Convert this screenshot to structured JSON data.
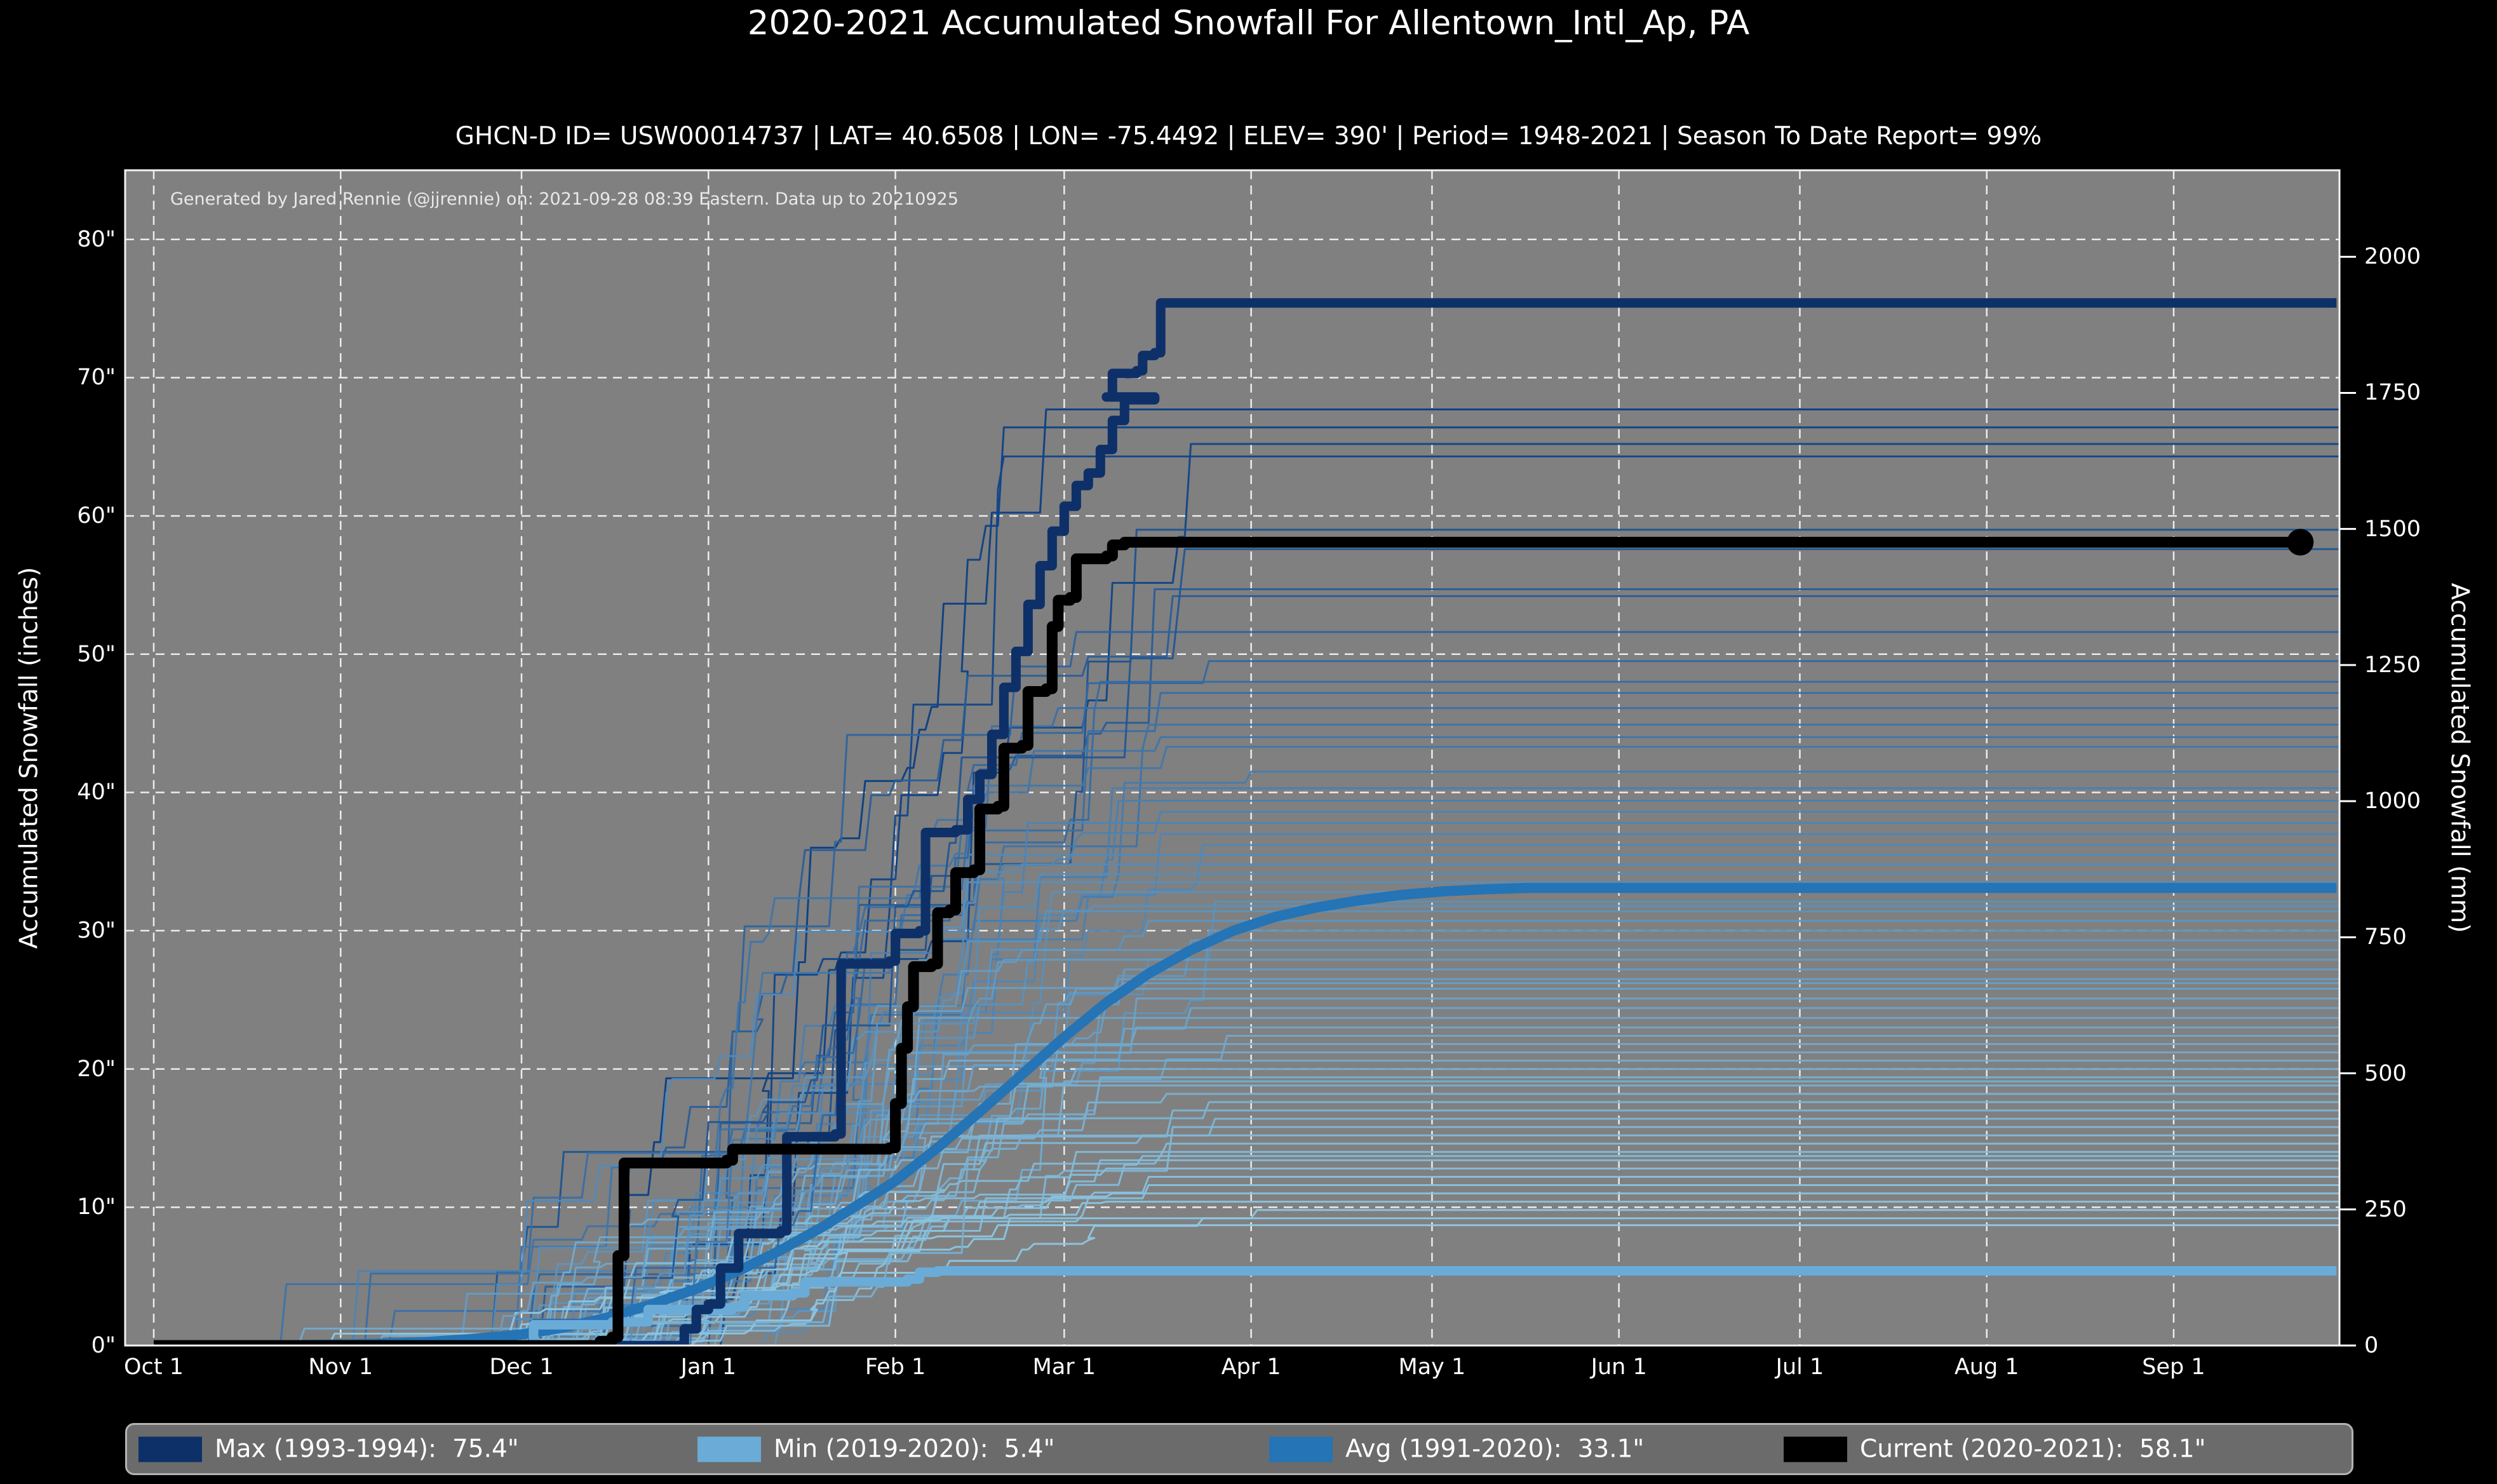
{
  "title": "2020-2021 Accumulated Snowfall For Allentown_Intl_Ap, PA",
  "subtitle": "GHCN-D ID= USW00014737 | LAT= 40.6508 | LON= -75.4492 | ELEV= 390' | Period= 1948-2021 | Season To Date Report= 99%",
  "watermark": "Generated by Jared Rennie (@jjrennie) on: 2021-09-28 08:39 Eastern. Data up to 20210925",
  "axes": {
    "left_label": "Accumulated Snowfall (inches)",
    "right_label": "Accumulated Snowfall (mm)",
    "x_tick_labels": [
      "Oct 1",
      "Nov 1",
      "Dec 1",
      "Jan 1",
      "Feb 1",
      "Mar 1",
      "Apr 1",
      "May 1",
      "Jun 1",
      "Jul 1",
      "Aug 1",
      "Sep 1"
    ],
    "x_tick_days": [
      0,
      31,
      61,
      92,
      123,
      151,
      182,
      212,
      243,
      273,
      304,
      335
    ],
    "y_tick_labels": [
      "0\"",
      "10\"",
      "20\"",
      "30\"",
      "40\"",
      "50\"",
      "60\"",
      "70\"",
      "80\""
    ],
    "y_tick_inches": [
      0,
      10,
      20,
      30,
      40,
      50,
      60,
      70,
      80
    ],
    "right_tick_labels": [
      "0",
      "250",
      "500",
      "750",
      "1000",
      "1250",
      "1500",
      "1750",
      "2000"
    ],
    "right_tick_mm": [
      0,
      250,
      500,
      750,
      1000,
      1250,
      1500,
      1750,
      2000
    ]
  },
  "legend": [
    {
      "label": "Max (1993-1994):",
      "value": "75.4\"",
      "color": "#0e3069"
    },
    {
      "label": "Min (2019-2020):",
      "value": "5.4\"",
      "color": "#6aabd8"
    },
    {
      "label": "Avg (1991-2020):",
      "value": "33.1\"",
      "color": "#2474b6"
    },
    {
      "label": "Current (2020-2021):",
      "value": "58.1\"",
      "color": "#000000"
    }
  ],
  "colors": {
    "page_bg": "#000000",
    "plot_bg": "#808080",
    "grid": "#ffffff",
    "spine": "#f2f2f2",
    "text": "#ffffff",
    "legend_bg": "#6b6b6b",
    "legend_border": "#b3b3b3",
    "bg_season_light": "#96d0e8",
    "bg_season_dark": "#0a3d82"
  },
  "chart_data": {
    "type": "line",
    "x_unit": "days since Oct 1",
    "xlim": [
      0,
      365
    ],
    "ylim_inches": [
      0,
      85
    ],
    "ylim_mm": [
      0,
      2159
    ],
    "grid": true,
    "legend_position": "bottom",
    "series": [
      {
        "name": "Max (1993-1994)",
        "final": 75.4,
        "color": "#0e3069",
        "width": 15,
        "interp": "step",
        "points": [
          [
            0,
            0
          ],
          [
            86,
            0
          ],
          [
            88,
            1.2
          ],
          [
            90,
            2.6
          ],
          [
            92,
            3.0
          ],
          [
            94,
            5.6
          ],
          [
            97,
            8.1
          ],
          [
            104,
            8.3
          ],
          [
            105,
            15.1
          ],
          [
            113,
            15.3
          ],
          [
            114,
            27.6
          ],
          [
            122,
            27.8
          ],
          [
            123,
            29.8
          ],
          [
            127,
            30.0
          ],
          [
            128,
            37.1
          ],
          [
            133,
            37.3
          ],
          [
            135,
            39.5
          ],
          [
            137,
            41.3
          ],
          [
            139,
            44.2
          ],
          [
            141,
            47.6
          ],
          [
            143,
            50.2
          ],
          [
            145,
            53.6
          ],
          [
            147,
            56.4
          ],
          [
            149,
            58.9
          ],
          [
            151,
            60.7
          ],
          [
            153,
            62.2
          ],
          [
            155,
            63.1
          ],
          [
            157,
            64.8
          ],
          [
            159,
            66.9
          ],
          [
            161,
            68.4
          ],
          [
            166,
            68.6
          ],
          [
            158,
            68.6
          ],
          [
            159,
            70.3
          ],
          [
            163,
            70.5
          ],
          [
            164,
            71.6
          ],
          [
            166,
            71.8
          ],
          [
            167,
            75.4
          ],
          [
            362,
            75.4
          ]
        ]
      },
      {
        "name": "Min (2019-2020)",
        "final": 5.4,
        "color": "#6aabd8",
        "width": 15,
        "interp": "step",
        "points": [
          [
            0,
            0
          ],
          [
            62,
            0
          ],
          [
            63,
            1.5
          ],
          [
            76,
            1.7
          ],
          [
            82,
            2.6
          ],
          [
            96,
            2.8
          ],
          [
            98,
            3.6
          ],
          [
            106,
            3.8
          ],
          [
            108,
            4.6
          ],
          [
            125,
            4.8
          ],
          [
            127,
            5.3
          ],
          [
            130,
            5.4
          ],
          [
            362,
            5.4
          ]
        ]
      },
      {
        "name": "Avg (1991-2020)",
        "final": 33.1,
        "color": "#2474b6",
        "width": 16,
        "interp": "linear",
        "points": [
          [
            0,
            0
          ],
          [
            20,
            0
          ],
          [
            35,
            0.1
          ],
          [
            45,
            0.25
          ],
          [
            52,
            0.45
          ],
          [
            61,
            0.8
          ],
          [
            68,
            1.3
          ],
          [
            75,
            2.0
          ],
          [
            82,
            2.9
          ],
          [
            90,
            4.1
          ],
          [
            97,
            5.4
          ],
          [
            104,
            6.9
          ],
          [
            111,
            8.6
          ],
          [
            118,
            10.5
          ],
          [
            123,
            11.9
          ],
          [
            130,
            14.3
          ],
          [
            137,
            16.9
          ],
          [
            144,
            19.6
          ],
          [
            151,
            22.3
          ],
          [
            158,
            24.8
          ],
          [
            165,
            26.9
          ],
          [
            172,
            28.6
          ],
          [
            179,
            30.0
          ],
          [
            186,
            31.0
          ],
          [
            193,
            31.7
          ],
          [
            200,
            32.2
          ],
          [
            207,
            32.6
          ],
          [
            214,
            32.85
          ],
          [
            221,
            33.0
          ],
          [
            228,
            33.1
          ],
          [
            362,
            33.1
          ]
        ]
      },
      {
        "name": "Current (2020-2021)",
        "final": 58.1,
        "color": "#000000",
        "width": 17,
        "interp": "step",
        "marker_end": {
          "day": 356,
          "value": 58.1,
          "radius": 21
        },
        "points": [
          [
            0,
            0
          ],
          [
            73,
            0
          ],
          [
            74,
            0.3
          ],
          [
            76,
            0.6
          ],
          [
            77,
            6.5
          ],
          [
            78,
            13.2
          ],
          [
            95,
            13.4
          ],
          [
            96,
            14.2
          ],
          [
            122,
            14.3
          ],
          [
            123,
            17.5
          ],
          [
            124,
            21.5
          ],
          [
            125,
            24.5
          ],
          [
            126,
            27.4
          ],
          [
            129,
            27.6
          ],
          [
            130,
            31.3
          ],
          [
            132,
            31.5
          ],
          [
            133,
            34.2
          ],
          [
            136,
            34.4
          ],
          [
            137,
            38.8
          ],
          [
            140,
            39.0
          ],
          [
            141,
            43.2
          ],
          [
            144,
            43.4
          ],
          [
            145,
            47.3
          ],
          [
            148,
            47.5
          ],
          [
            149,
            52.0
          ],
          [
            150,
            53.9
          ],
          [
            152,
            54.1
          ],
          [
            153,
            56.9
          ],
          [
            158,
            57.1
          ],
          [
            159,
            57.9
          ],
          [
            161,
            58.1
          ],
          [
            356,
            58.1
          ]
        ]
      }
    ],
    "background_seasons": {
      "description": "thin historical season lines 1948-2021, cumulative snowfall steps, final totals in inches",
      "final_totals": [
        67.7,
        66.4,
        65.2,
        64.3,
        59.0,
        54.7,
        54.2,
        51.6,
        48.0,
        47.2,
        46.1,
        44.9,
        44.0,
        41.5,
        40.3,
        39.4,
        38.6,
        37.8,
        37.0,
        36.2,
        35.5,
        34.8,
        34.1,
        33.5,
        32.8,
        32.1,
        31.4,
        30.7,
        30.0,
        29.3,
        28.6,
        27.9,
        27.2,
        26.5,
        25.8,
        25.1,
        24.4,
        23.7,
        23.0,
        22.4,
        21.8,
        21.2,
        20.6,
        20.0,
        19.4,
        18.8,
        18.2,
        17.6,
        17.0,
        16.4,
        15.8,
        15.2,
        14.6,
        14.0,
        13.4,
        12.8,
        12.2,
        11.6,
        11.0,
        10.4,
        9.8,
        9.2,
        8.7,
        13.7,
        43.3,
        57.6,
        49.5,
        31.8,
        26.2,
        19.1
      ],
      "line_width": 3
    }
  }
}
